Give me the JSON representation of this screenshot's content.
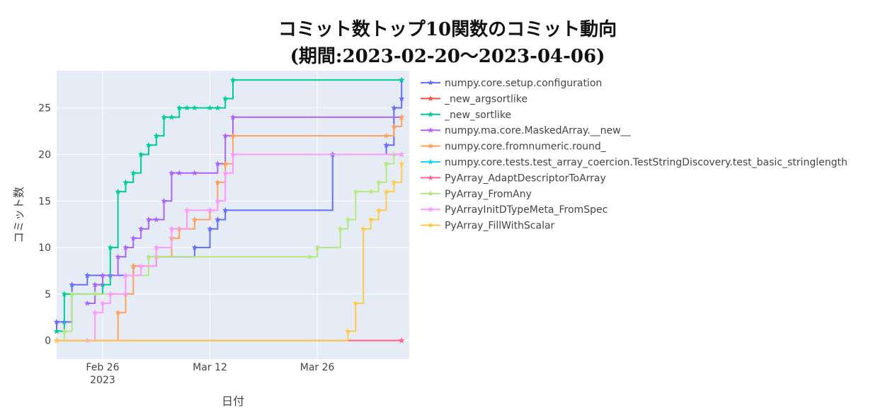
{
  "chart_data": {
    "type": "line",
    "line_shape": "step",
    "marker": "star",
    "title_line1": "コミット数トップ10関数のコミット動向",
    "title_line2": "(期間:2023-02-20〜2023-04-06)",
    "xlabel": "日付",
    "ylabel": "コミット数",
    "xlim": [
      "2023-02-20",
      "2023-04-07"
    ],
    "ylim": [
      -2,
      29
    ],
    "x_ticks": [
      {
        "date": "2023-02-26",
        "label": "Feb 26",
        "sublabel": "2023"
      },
      {
        "date": "2023-03-12",
        "label": "Mar 12",
        "sublabel": ""
      },
      {
        "date": "2023-03-26",
        "label": "Mar 26",
        "sublabel": ""
      }
    ],
    "y_ticks": [
      0,
      5,
      10,
      15,
      20,
      25
    ],
    "grid": true,
    "legend_position": "right",
    "plot_background": "#e5ecf6",
    "series": [
      {
        "name": "numpy.core.setup.configuration",
        "color": "#636efa",
        "x": [
          "2023-02-20",
          "2023-02-20",
          "2023-02-21",
          "2023-02-22",
          "2023-02-24",
          "2023-02-27",
          "2023-03-02",
          "2023-03-05",
          "2023-03-10",
          "2023-03-12",
          "2023-03-13",
          "2023-03-14",
          "2023-03-28",
          "2023-04-04",
          "2023-04-05",
          "2023-04-06",
          "2023-04-06"
        ],
        "y": [
          1,
          2,
          2,
          6,
          7,
          7,
          8,
          9,
          10,
          12,
          13,
          14,
          20,
          21,
          25,
          26,
          28
        ]
      },
      {
        "name": "_new_argsortlike",
        "color": "#ef553b",
        "x": [
          "2023-02-20",
          "2023-04-06"
        ],
        "y": [
          0,
          0
        ]
      },
      {
        "name": "_new_sortlike",
        "color": "#00cc96",
        "x": [
          "2023-02-20",
          "2023-02-21",
          "2023-02-26",
          "2023-02-27",
          "2023-02-28",
          "2023-03-01",
          "2023-03-02",
          "2023-03-03",
          "2023-03-04",
          "2023-03-05",
          "2023-03-06",
          "2023-03-07",
          "2023-03-08",
          "2023-03-09",
          "2023-03-10",
          "2023-03-12",
          "2023-03-13",
          "2023-03-14",
          "2023-03-15",
          "2023-04-06"
        ],
        "y": [
          1,
          5,
          6,
          10,
          16,
          17,
          18,
          20,
          21,
          22,
          24,
          24,
          25,
          25,
          25,
          25,
          25,
          26,
          28,
          28
        ]
      },
      {
        "name": "numpy.ma.core.MaskedArray.__new__",
        "color": "#ab63fa",
        "x": [
          "2023-02-24",
          "2023-02-25",
          "2023-02-26",
          "2023-02-28",
          "2023-03-01",
          "2023-03-02",
          "2023-03-03",
          "2023-03-04",
          "2023-03-05",
          "2023-03-06",
          "2023-03-07",
          "2023-03-08",
          "2023-03-10",
          "2023-03-13",
          "2023-03-14",
          "2023-03-15",
          "2023-04-06"
        ],
        "y": [
          4,
          6,
          7,
          9,
          10,
          11,
          12,
          13,
          13,
          15,
          18,
          18,
          18,
          19,
          22,
          24,
          24
        ]
      },
      {
        "name": "numpy.core.fromnumeric.round_",
        "color": "#ffa15a",
        "x": [
          "2023-02-20",
          "2023-02-28",
          "2023-03-01",
          "2023-03-02",
          "2023-03-05",
          "2023-03-07",
          "2023-03-08",
          "2023-03-10",
          "2023-03-12",
          "2023-03-13",
          "2023-03-14",
          "2023-03-15",
          "2023-04-04",
          "2023-04-05",
          "2023-04-06"
        ],
        "y": [
          0,
          3,
          5,
          8,
          9,
          11,
          12,
          13,
          14,
          17,
          19,
          22,
          22,
          23,
          24
        ]
      },
      {
        "name": "numpy.core.tests.test_array_coercion.TestStringDiscovery.test_basic_stringlength",
        "color": "#19d3f3",
        "x": [
          "2023-04-06"
        ],
        "y": [
          20
        ]
      },
      {
        "name": "PyArray_AdaptDescriptorToArray",
        "color": "#ff6692",
        "x": [
          "2023-02-20",
          "2023-04-06"
        ],
        "y": [
          0,
          0
        ]
      },
      {
        "name": "PyArray_FromAny",
        "color": "#b6e880",
        "x": [
          "2023-02-20",
          "2023-02-21",
          "2023-02-22",
          "2023-02-25",
          "2023-03-01",
          "2023-03-04",
          "2023-03-05",
          "2023-03-25",
          "2023-03-26",
          "2023-03-29",
          "2023-03-30",
          "2023-03-31",
          "2023-04-02",
          "2023-04-03",
          "2023-04-04",
          "2023-04-05",
          "2023-04-06"
        ],
        "y": [
          0,
          1,
          5,
          5,
          7,
          9,
          9,
          9,
          10,
          12,
          13,
          16,
          16,
          17,
          19,
          20,
          20
        ]
      },
      {
        "name": "PyArrayInitDTypeMeta_FromSpec",
        "color": "#ff97ff",
        "x": [
          "2023-02-24",
          "2023-02-25",
          "2023-02-26",
          "2023-02-27",
          "2023-02-29",
          "2023-03-01",
          "2023-03-03",
          "2023-03-05",
          "2023-03-07",
          "2023-03-09",
          "2023-03-12",
          "2023-03-13",
          "2023-03-14",
          "2023-03-15",
          "2023-04-06"
        ],
        "y": [
          0,
          3,
          4,
          5,
          5,
          7,
          8,
          10,
          12,
          14,
          14,
          15,
          18,
          20,
          20
        ]
      },
      {
        "name": "PyArray_FillWithScalar",
        "color": "#fecb52",
        "x": [
          "2023-02-20",
          "2023-03-30",
          "2023-03-31",
          "2023-04-01",
          "2023-04-02",
          "2023-04-03",
          "2023-04-04",
          "2023-04-05",
          "2023-04-06"
        ],
        "y": [
          0,
          1,
          4,
          12,
          13,
          14,
          16,
          17,
          19
        ]
      }
    ]
  }
}
